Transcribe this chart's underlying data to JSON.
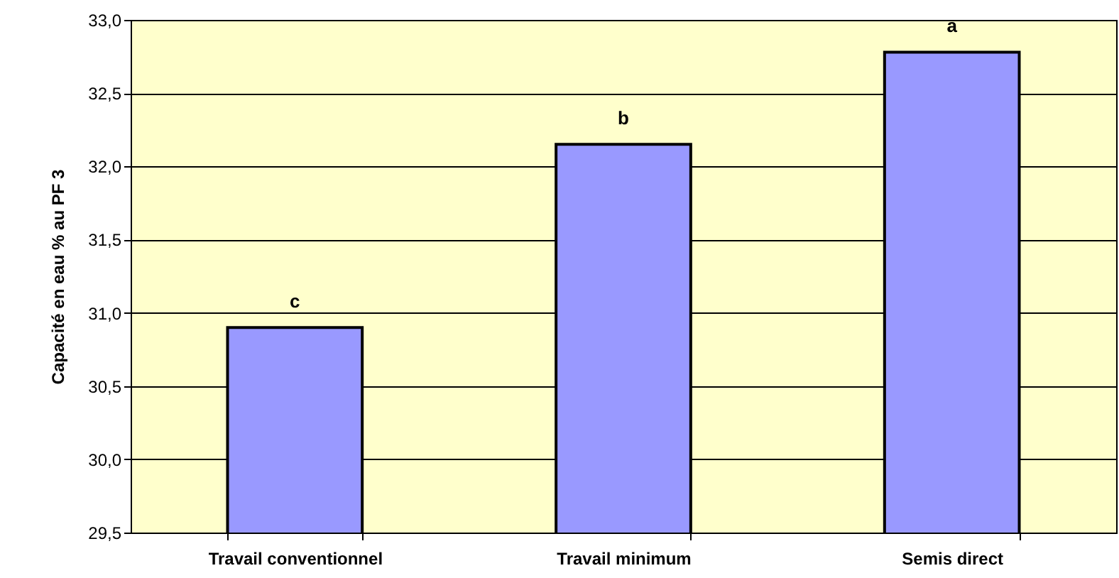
{
  "chart_data": {
    "type": "bar",
    "ylabel": "Capacité en eau % au PF 3",
    "categories": [
      "Travail conventionnel",
      "Travail minimum",
      "Semis direct"
    ],
    "values": [
      30.9,
      32.15,
      32.78
    ],
    "color": "#9999ff",
    "ylim": [
      29.5,
      33.0
    ],
    "yticks": [
      {
        "value": 29.5,
        "label": "29,5"
      },
      {
        "value": 30.0,
        "label": "30,0"
      },
      {
        "value": 30.5,
        "label": "30,5"
      },
      {
        "value": 31.0,
        "label": "31,0"
      },
      {
        "value": 31.5,
        "label": "31,5"
      },
      {
        "value": 32.0,
        "label": "32,0"
      },
      {
        "value": 32.5,
        "label": "32,5"
      },
      {
        "value": 33.0,
        "label": "33,0"
      }
    ],
    "grid": "y",
    "annotations": [
      "c",
      "b",
      "a"
    ]
  }
}
